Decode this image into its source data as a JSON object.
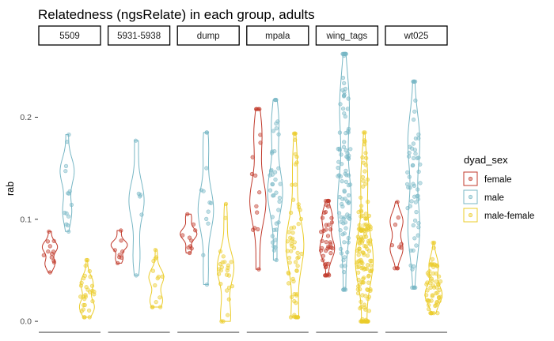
{
  "chart_data": {
    "type": "violin",
    "title": "Relatedness (ngsRelate) in each group, adults",
    "xlabel": "",
    "ylabel": "rab",
    "ylim": [
      -0.01,
      0.27
    ],
    "yticks": [
      0.0,
      0.1,
      0.2
    ],
    "ytick_labels": [
      "0.0",
      "0.1",
      "0.2"
    ],
    "facets": [
      "5509",
      "5931-5938",
      "dump",
      "mpala",
      "wing_tags",
      "wt025"
    ],
    "legend": {
      "title": "dyad_sex",
      "position": "right",
      "entries": [
        "female",
        "male",
        "male-female"
      ]
    },
    "colors": {
      "female": "#c0392b",
      "male": "#78b7c5",
      "male-female": "#ebcc2a"
    },
    "series": [
      {
        "facet": "5509",
        "group": "female",
        "min": 0.048,
        "max": 0.088,
        "points": 12
      },
      {
        "facet": "5509",
        "group": "male",
        "min": 0.088,
        "max": 0.183,
        "points": 14
      },
      {
        "facet": "5509",
        "group": "male-female",
        "min": 0.004,
        "max": 0.06,
        "points": 30
      },
      {
        "facet": "5931-5938",
        "group": "female",
        "min": 0.057,
        "max": 0.089,
        "points": 8
      },
      {
        "facet": "5931-5938",
        "group": "male",
        "min": 0.045,
        "max": 0.177,
        "points": 6
      },
      {
        "facet": "5931-5938",
        "group": "male-female",
        "min": 0.014,
        "max": 0.07,
        "points": 14
      },
      {
        "facet": "dump",
        "group": "female",
        "min": 0.067,
        "max": 0.105,
        "points": 10
      },
      {
        "facet": "dump",
        "group": "male",
        "min": 0.036,
        "max": 0.185,
        "points": 12
      },
      {
        "facet": "dump",
        "group": "male-female",
        "min": 0.0,
        "max": 0.115,
        "points": 25
      },
      {
        "facet": "mpala",
        "group": "female",
        "min": 0.051,
        "max": 0.208,
        "points": 16
      },
      {
        "facet": "mpala",
        "group": "male",
        "min": 0.06,
        "max": 0.217,
        "points": 40
      },
      {
        "facet": "mpala",
        "group": "male-female",
        "min": 0.004,
        "max": 0.184,
        "points": 60
      },
      {
        "facet": "wing_tags",
        "group": "female",
        "min": 0.045,
        "max": 0.118,
        "points": 45
      },
      {
        "facet": "wing_tags",
        "group": "male",
        "min": 0.031,
        "max": 0.262,
        "points": 100
      },
      {
        "facet": "wing_tags",
        "group": "male-female",
        "min": 0.0,
        "max": 0.185,
        "points": 150
      },
      {
        "facet": "wt025",
        "group": "female",
        "min": 0.052,
        "max": 0.117,
        "points": 10
      },
      {
        "facet": "wt025",
        "group": "male",
        "min": 0.033,
        "max": 0.235,
        "points": 60
      },
      {
        "facet": "wt025",
        "group": "male-female",
        "min": 0.008,
        "max": 0.077,
        "points": 60
      }
    ]
  }
}
